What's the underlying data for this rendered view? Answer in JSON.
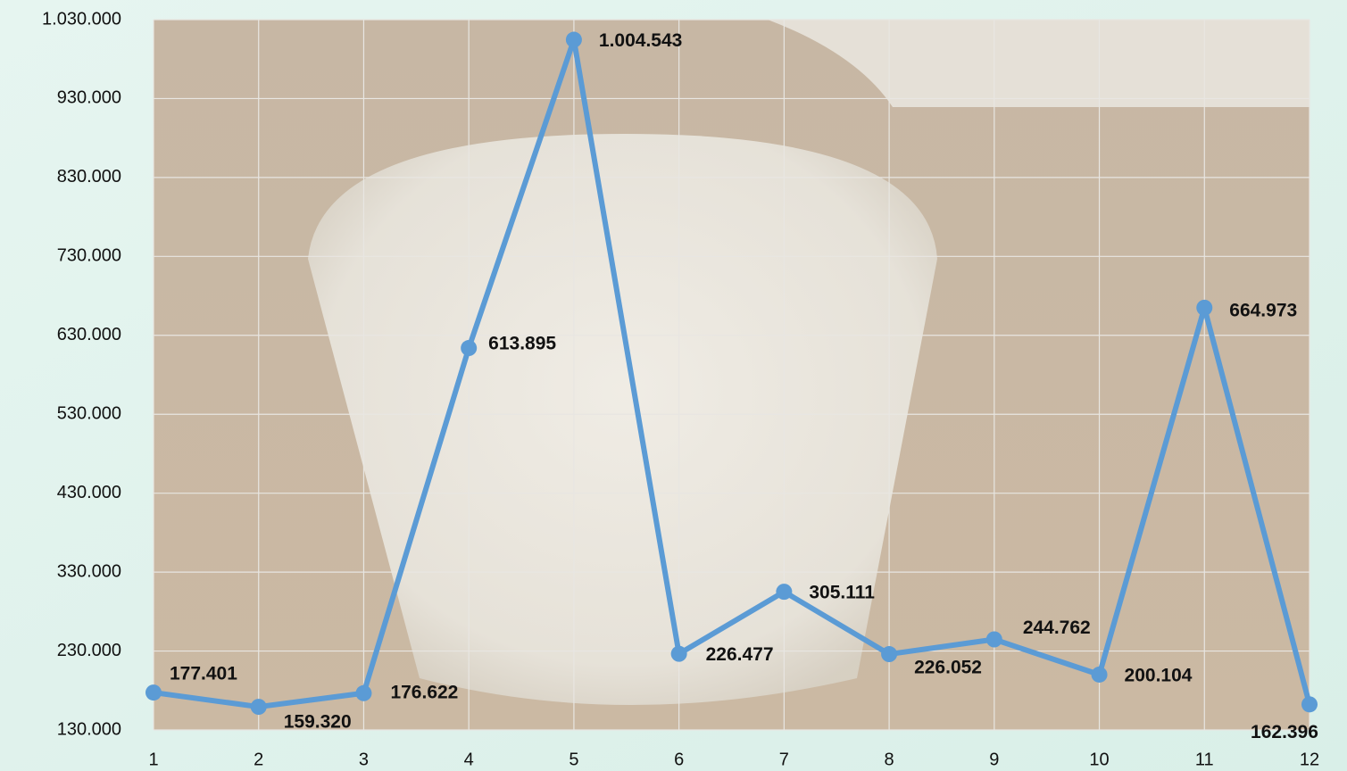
{
  "chart_data": {
    "type": "line",
    "x": [
      1,
      2,
      3,
      4,
      5,
      6,
      7,
      8,
      9,
      10,
      11,
      12
    ],
    "series": [
      {
        "color": "#5b9bd5",
        "values": [
          177401,
          159320,
          176622,
          613895,
          1004543,
          226477,
          305111,
          226052,
          244762,
          200104,
          664973,
          162396
        ],
        "value_labels": [
          "177.401",
          "159.320",
          "176.622",
          "613.895",
          "1.004.543",
          "226.477",
          "305.111",
          "226.052",
          "244.762",
          "200.104",
          "664.973",
          "162.396"
        ]
      }
    ],
    "xlim": [
      1,
      12
    ],
    "xticks": [
      1,
      2,
      3,
      4,
      5,
      6,
      7,
      8,
      9,
      10,
      11,
      12
    ],
    "ylim": [
      130000,
      1030000
    ],
    "yticks": [
      {
        "value": 130000,
        "label": "130.000"
      },
      {
        "value": 230000,
        "label": "230.000"
      },
      {
        "value": 330000,
        "label": "330.000"
      },
      {
        "value": 430000,
        "label": "430.000"
      },
      {
        "value": 530000,
        "label": "530.000"
      },
      {
        "value": 630000,
        "label": "630.000"
      },
      {
        "value": 730000,
        "label": "730.000"
      },
      {
        "value": 830000,
        "label": "830.000"
      },
      {
        "value": 930000,
        "label": "930.000"
      },
      {
        "value": 1030000,
        "label": "1.030.000"
      }
    ],
    "grid": true
  }
}
